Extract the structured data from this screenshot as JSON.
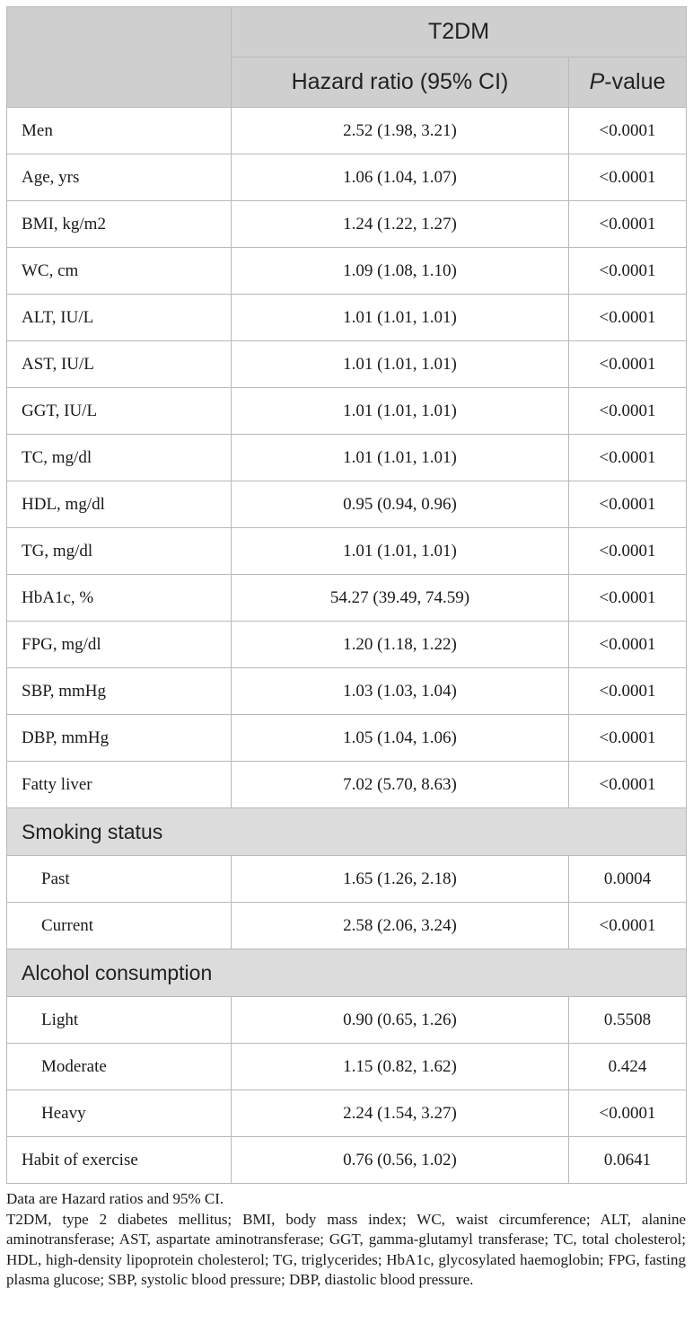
{
  "header": {
    "group_label": "T2DM",
    "col_hr": "Hazard ratio (95% CI)",
    "col_p_italic": "P",
    "col_p_rest": "-value"
  },
  "rows_top": [
    {
      "label": "Men",
      "hr": "2.52 (1.98, 3.21)",
      "p": "<0.0001"
    },
    {
      "label": "Age, yrs",
      "hr": "1.06 (1.04, 1.07)",
      "p": "<0.0001"
    },
    {
      "label": "BMI, kg/m2",
      "hr": "1.24 (1.22, 1.27)",
      "p": "<0.0001"
    },
    {
      "label": "WC, cm",
      "hr": "1.09 (1.08, 1.10)",
      "p": "<0.0001"
    },
    {
      "label": "ALT, IU/L",
      "hr": "1.01 (1.01, 1.01)",
      "p": "<0.0001"
    },
    {
      "label": "AST, IU/L",
      "hr": "1.01 (1.01, 1.01)",
      "p": "<0.0001"
    },
    {
      "label": "GGT, IU/L",
      "hr": "1.01 (1.01, 1.01)",
      "p": "<0.0001"
    },
    {
      "label": "TC, mg/dl",
      "hr": "1.01 (1.01, 1.01)",
      "p": "<0.0001"
    },
    {
      "label": "HDL, mg/dl",
      "hr": "0.95 (0.94, 0.96)",
      "p": "<0.0001"
    },
    {
      "label": "TG, mg/dl",
      "hr": "1.01 (1.01, 1.01)",
      "p": "<0.0001"
    },
    {
      "label": "HbA1c, %",
      "hr": "54.27 (39.49, 74.59)",
      "p": "<0.0001"
    },
    {
      "label": "FPG, mg/dl",
      "hr": "1.20 (1.18, 1.22)",
      "p": "<0.0001"
    },
    {
      "label": "SBP, mmHg",
      "hr": "1.03 (1.03, 1.04)",
      "p": "<0.0001"
    },
    {
      "label": "DBP, mmHg",
      "hr": "1.05 (1.04, 1.06)",
      "p": "<0.0001"
    },
    {
      "label": "Fatty liver",
      "hr": "7.02 (5.70, 8.63)",
      "p": "<0.0001"
    }
  ],
  "smoking": {
    "section_label": "Smoking status",
    "rows": [
      {
        "label": "Past",
        "hr": "1.65 (1.26, 2.18)",
        "p": "0.0004"
      },
      {
        "label": "Current",
        "hr": "2.58 (2.06, 3.24)",
        "p": "<0.0001"
      }
    ]
  },
  "alcohol": {
    "section_label": "Alcohol consumption",
    "rows": [
      {
        "label": "Light",
        "hr": "0.90 (0.65, 1.26)",
        "p": "0.5508"
      },
      {
        "label": "Moderate",
        "hr": "1.15 (0.82, 1.62)",
        "p": "0.424"
      },
      {
        "label": "Heavy",
        "hr": "2.24 (1.54, 3.27)",
        "p": "<0.0001"
      }
    ]
  },
  "rows_bottom": [
    {
      "label": "Habit of exercise",
      "hr": "0.76 (0.56, 1.02)",
      "p": "0.0641"
    }
  ],
  "footnotes": {
    "line1": "Data are Hazard ratios and 95% CI.",
    "line2": "T2DM, type 2 diabetes mellitus; BMI, body mass index; WC, waist circumference; ALT, alanine aminotransferase; AST, aspartate aminotransferase; GGT, gamma-glutamyl transferase; TC, total cholesterol; HDL, high-density lipoprotein cholesterol; TG, triglycerides; HbA1c, glycosylated haemoglobin; FPG, fasting plasma glucose; SBP, systolic blood pressure; DBP, diastolic blood pressure."
  }
}
